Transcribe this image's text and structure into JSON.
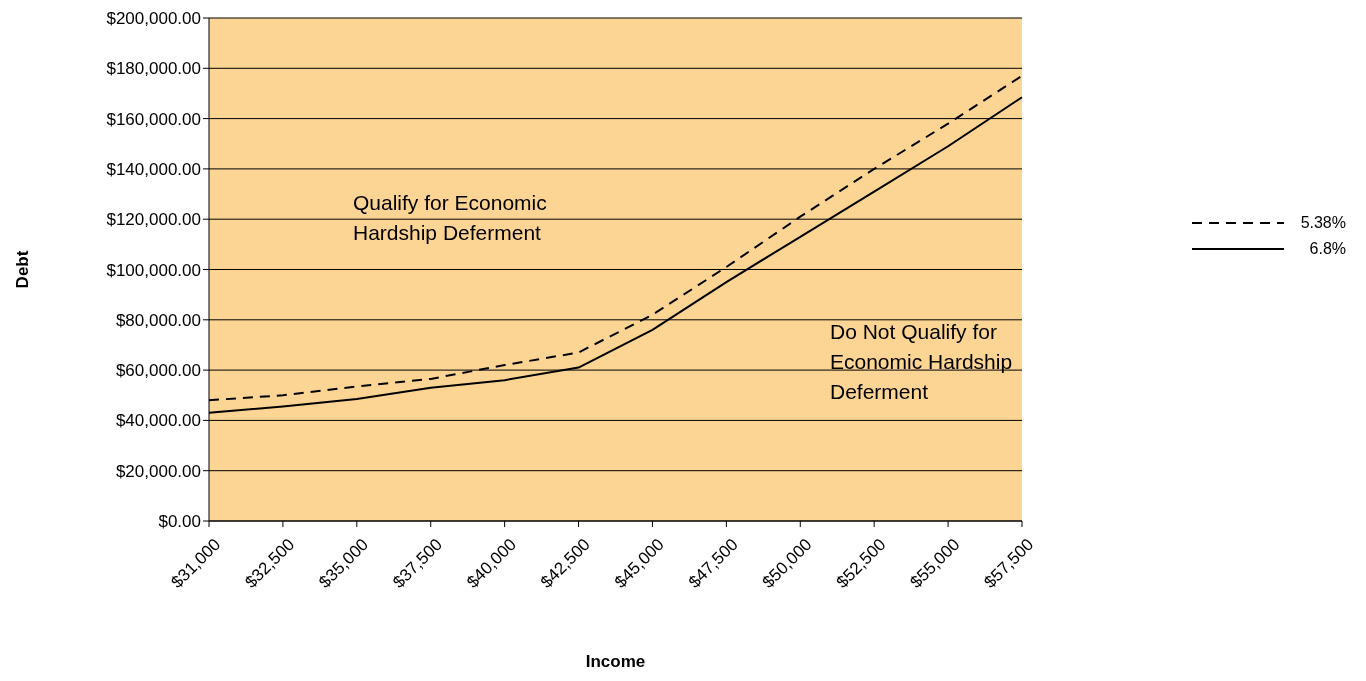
{
  "chart_data": {
    "type": "line",
    "xlabel": "Income",
    "ylabel": "Debt",
    "categories": [
      "$31,000",
      "$32,500",
      "$35,000",
      "$37,500",
      "$40,000",
      "$42,500",
      "$45,000",
      "$47,500",
      "$50,000",
      "$52,500",
      "$55,000",
      "$57,500"
    ],
    "series": [
      {
        "name": "5.38%",
        "color": "#000000",
        "line_style": "dashed",
        "values": [
          48000,
          50000,
          53500,
          56500,
          62000,
          67000,
          82000,
          101000,
          121000,
          140000,
          158000,
          177000
        ]
      },
      {
        "name": "6.8%",
        "color": "#000000",
        "line_style": "solid",
        "values": [
          43000,
          45500,
          48500,
          53000,
          56000,
          61000,
          76000,
          95000,
          113000,
          131000,
          149000,
          168500
        ]
      }
    ],
    "ylim": [
      0,
      200000
    ],
    "yticks": [
      {
        "value": 0,
        "label": "$0.00"
      },
      {
        "value": 20000,
        "label": "$20,000.00"
      },
      {
        "value": 40000,
        "label": "$40,000.00"
      },
      {
        "value": 60000,
        "label": "$60,000.00"
      },
      {
        "value": 80000,
        "label": "$80,000.00"
      },
      {
        "value": 100000,
        "label": "$100,000.00"
      },
      {
        "value": 120000,
        "label": "$120,000.00"
      },
      {
        "value": 140000,
        "label": "$140,000.00"
      },
      {
        "value": 160000,
        "label": "$160,000.00"
      },
      {
        "value": 180000,
        "label": "$180,000.00"
      },
      {
        "value": 200000,
        "label": "$200,000.00"
      }
    ],
    "grid": "y",
    "legend": "right",
    "marker": "none",
    "bands": [
      {
        "axis": "y",
        "from": 0,
        "to": 200000,
        "color": "#fcd595"
      }
    ],
    "annotations": [
      "Qualify for Economic Hardship Deferment",
      "Do Not Qualify for Economic Hardship Deferment"
    ]
  }
}
